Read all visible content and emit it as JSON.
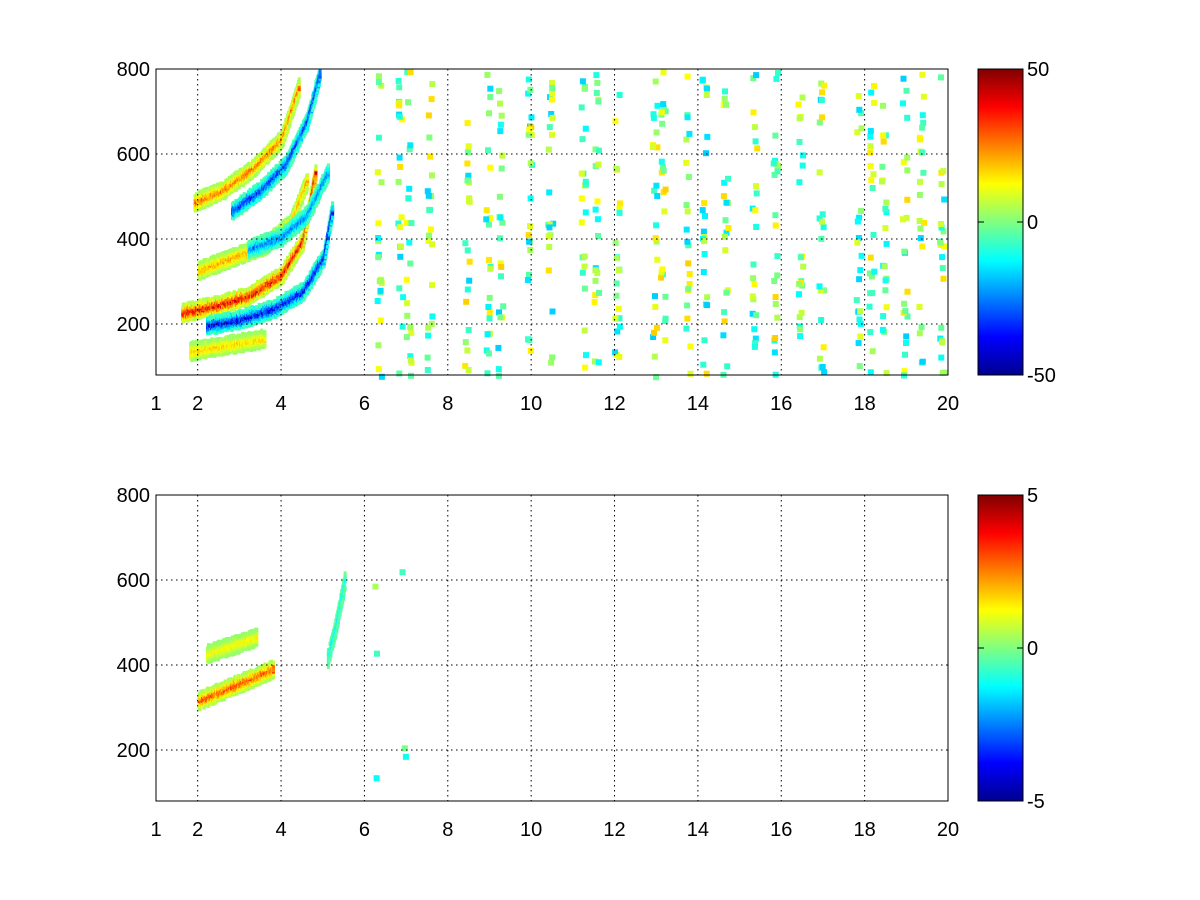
{
  "chart_data": [
    {
      "type": "heatmap",
      "title": "",
      "xlabel": "",
      "ylabel": "",
      "xlim": [
        1,
        20
      ],
      "ylim": [
        80,
        800
      ],
      "xticks": [
        1,
        2,
        4,
        6,
        8,
        10,
        12,
        14,
        16,
        18,
        20
      ],
      "yticks": [
        200,
        400,
        600,
        800
      ],
      "grid": true,
      "colormap": "jet",
      "colorbar": {
        "ticks": [
          -50,
          0,
          50
        ],
        "range": [
          -50,
          50
        ]
      },
      "features": [
        {
          "kind": "ridge",
          "x": [
            1.6,
            2.5,
            3.2,
            4.0,
            4.5,
            4.8
          ],
          "y": [
            230,
            250,
            270,
            320,
            400,
            560
          ],
          "value": 45
        },
        {
          "kind": "ridge",
          "x": [
            1.9,
            2.6,
            3.3,
            4.0,
            4.4
          ],
          "y": [
            490,
            520,
            570,
            640,
            760
          ],
          "value": 30
        },
        {
          "kind": "ridge",
          "x": [
            2.0,
            2.8,
            3.6,
            4.2,
            4.6
          ],
          "y": [
            330,
            360,
            390,
            440,
            540
          ],
          "value": 25
        },
        {
          "kind": "ridge",
          "x": [
            1.8,
            2.4,
            3.0,
            3.6
          ],
          "y": [
            140,
            150,
            160,
            170
          ],
          "value": 20
        },
        {
          "kind": "ridge",
          "x": [
            2.2,
            3.0,
            3.8,
            4.5,
            5.0,
            5.2
          ],
          "y": [
            200,
            215,
            240,
            280,
            360,
            470
          ],
          "value": -45
        },
        {
          "kind": "ridge",
          "x": [
            2.8,
            3.5,
            4.1,
            4.6,
            4.9
          ],
          "y": [
            470,
            520,
            580,
            680,
            790
          ],
          "value": -40
        },
        {
          "kind": "ridge",
          "x": [
            3.2,
            4.0,
            4.6,
            5.1
          ],
          "y": [
            380,
            410,
            460,
            560
          ],
          "value": -30
        }
      ],
      "scatter_columns": [
        6.3,
        6.8,
        7.0,
        7.5,
        8.4,
        8.9,
        9.2,
        9.9,
        10.4,
        11.2,
        11.5,
        12.0,
        12.9,
        13.1,
        13.7,
        14.1,
        14.6,
        15.3,
        15.8,
        16.4,
        16.9,
        17.8,
        18.1,
        18.4,
        18.9,
        19.3,
        19.8
      ]
    },
    {
      "type": "heatmap",
      "title": "",
      "xlabel": "",
      "ylabel": "",
      "xlim": [
        1,
        20
      ],
      "ylim": [
        80,
        800
      ],
      "xticks": [
        1,
        2,
        4,
        6,
        8,
        10,
        12,
        14,
        16,
        18,
        20
      ],
      "yticks": [
        200,
        400,
        600,
        800
      ],
      "grid": true,
      "colormap": "jet",
      "colorbar": {
        "ticks": [
          -5,
          0,
          5
        ],
        "range": [
          -5,
          5
        ]
      },
      "features": [
        {
          "kind": "ridge",
          "x": [
            2.0,
            2.6,
            3.2,
            3.8
          ],
          "y": [
            320,
            345,
            370,
            395
          ],
          "value": 3.5
        },
        {
          "kind": "ridge",
          "x": [
            2.2,
            2.8,
            3.4
          ],
          "y": [
            430,
            450,
            470
          ],
          "value": 1.5
        },
        {
          "kind": "ridge",
          "x": [
            5.1,
            5.3,
            5.5
          ],
          "y": [
            420,
            500,
            600
          ],
          "value": -1.5
        }
      ],
      "scatter_columns": [
        6.2,
        6.9
      ]
    }
  ]
}
